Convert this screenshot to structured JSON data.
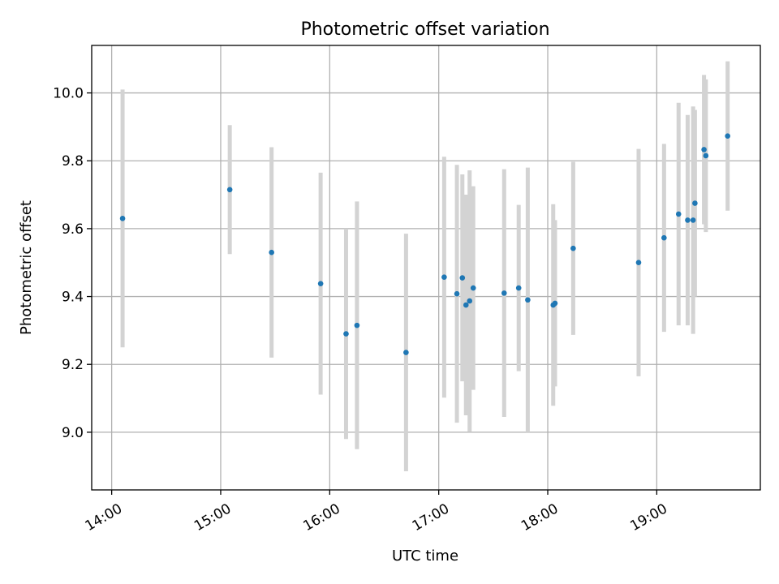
{
  "chart_data": {
    "type": "scatter",
    "title": "Photometric offset variation",
    "xlabel": "UTC time",
    "ylabel": "Photometric offset",
    "x_ticks": [
      "14:00",
      "15:00",
      "16:00",
      "17:00",
      "18:00",
      "19:00"
    ],
    "x_tick_hours": [
      14,
      15,
      16,
      17,
      18,
      19
    ],
    "xlim": [
      "13:49",
      "19:57"
    ],
    "y_ticks": [
      9.0,
      9.2,
      9.4,
      9.6,
      9.8,
      10.0
    ],
    "ylim": [
      8.83,
      10.14
    ],
    "grid": true,
    "colors": {
      "points": "#1f77b4",
      "errorbars": "#d3d3d3"
    },
    "points": [
      {
        "x": "14:06",
        "y": 9.63,
        "err": 0.38
      },
      {
        "x": "15:05",
        "y": 9.715,
        "err": 0.19
      },
      {
        "x": "15:28",
        "y": 9.53,
        "err": 0.31
      },
      {
        "x": "15:55",
        "y": 9.438,
        "err": 0.327
      },
      {
        "x": "16:09",
        "y": 9.29,
        "err": 0.31
      },
      {
        "x": "16:15",
        "y": 9.315,
        "err": 0.365
      },
      {
        "x": "16:42",
        "y": 9.235,
        "err": 0.35
      },
      {
        "x": "17:03",
        "y": 9.457,
        "err": 0.355
      },
      {
        "x": "17:10",
        "y": 9.408,
        "err": 0.38
      },
      {
        "x": "17:13",
        "y": 9.455,
        "err": 0.305
      },
      {
        "x": "17:15",
        "y": 9.375,
        "err": 0.325
      },
      {
        "x": "17:17",
        "y": 9.387,
        "err": 0.385
      },
      {
        "x": "17:19",
        "y": 9.425,
        "err": 0.3
      },
      {
        "x": "17:36",
        "y": 9.41,
        "err": 0.365
      },
      {
        "x": "17:44",
        "y": 9.425,
        "err": 0.245
      },
      {
        "x": "17:49",
        "y": 9.39,
        "err": 0.39
      },
      {
        "x": "18:03",
        "y": 9.375,
        "err": 0.297
      },
      {
        "x": "18:04",
        "y": 9.38,
        "err": 0.245
      },
      {
        "x": "18:14",
        "y": 9.542,
        "err": 0.255
      },
      {
        "x": "18:50",
        "y": 9.5,
        "err": 0.335
      },
      {
        "x": "19:04",
        "y": 9.573,
        "err": 0.277
      },
      {
        "x": "19:12",
        "y": 9.643,
        "err": 0.328
      },
      {
        "x": "19:17",
        "y": 9.625,
        "err": 0.31
      },
      {
        "x": "19:20",
        "y": 9.625,
        "err": 0.335
      },
      {
        "x": "19:21",
        "y": 9.675,
        "err": 0.275
      },
      {
        "x": "19:26",
        "y": 9.833,
        "err": 0.22
      },
      {
        "x": "19:27",
        "y": 9.815,
        "err": 0.225
      },
      {
        "x": "19:39",
        "y": 9.873,
        "err": 0.22
      }
    ]
  }
}
